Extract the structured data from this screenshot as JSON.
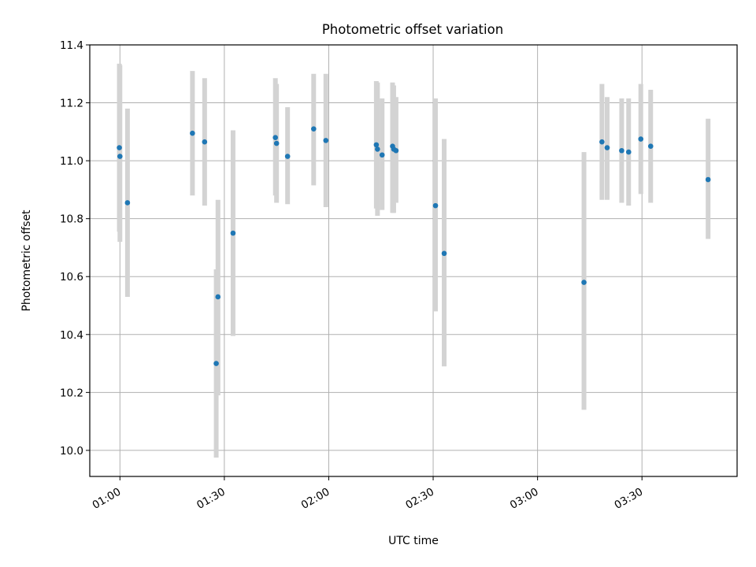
{
  "chart_data": {
    "type": "scatter",
    "title": "Photometric offset variation",
    "xlabel": "UTC time",
    "ylabel": "Photometric offset",
    "xlim": [
      "00:51:20",
      "03:57:20"
    ],
    "ylim": [
      9.91,
      11.4
    ],
    "x_ticks": [
      "01:00",
      "01:30",
      "02:00",
      "02:30",
      "03:00",
      "03:30"
    ],
    "y_ticks": [
      "10.0",
      "10.2",
      "10.4",
      "10.6",
      "10.8",
      "11.0",
      "11.2",
      "11.4"
    ],
    "grid": true,
    "colors": {
      "point": "#1f77b4",
      "error_bar": "#d3d3d3",
      "grid": "#b0b0b0"
    },
    "points": [
      {
        "x": "00:59:50",
        "y": 11.045,
        "ylow": 10.755,
        "yhigh": 11.335
      },
      {
        "x": "01:00:00",
        "y": 11.015,
        "ylow": 10.72,
        "yhigh": 11.33
      },
      {
        "x": "01:02:10",
        "y": 10.855,
        "ylow": 10.53,
        "yhigh": 11.18
      },
      {
        "x": "01:20:50",
        "y": 11.095,
        "ylow": 10.88,
        "yhigh": 11.31
      },
      {
        "x": "01:24:20",
        "y": 11.065,
        "ylow": 10.845,
        "yhigh": 11.285
      },
      {
        "x": "01:27:40",
        "y": 10.3,
        "ylow": 9.975,
        "yhigh": 10.625
      },
      {
        "x": "01:28:10",
        "y": 10.53,
        "ylow": 10.19,
        "yhigh": 10.865
      },
      {
        "x": "01:32:30",
        "y": 10.75,
        "ylow": 10.395,
        "yhigh": 11.105
      },
      {
        "x": "01:44:40",
        "y": 11.08,
        "ylow": 10.88,
        "yhigh": 11.285
      },
      {
        "x": "01:45:00",
        "y": 11.06,
        "ylow": 10.855,
        "yhigh": 11.265
      },
      {
        "x": "01:48:10",
        "y": 11.015,
        "ylow": 10.85,
        "yhigh": 11.185
      },
      {
        "x": "01:55:40",
        "y": 11.11,
        "ylow": 10.915,
        "yhigh": 11.3
      },
      {
        "x": "01:59:10",
        "y": 11.07,
        "ylow": 10.84,
        "yhigh": 11.3
      },
      {
        "x": "02:13:40",
        "y": 11.055,
        "ylow": 10.835,
        "yhigh": 11.275
      },
      {
        "x": "02:14:00",
        "y": 11.04,
        "ylow": 10.81,
        "yhigh": 11.27
      },
      {
        "x": "02:15:20",
        "y": 11.02,
        "ylow": 10.83,
        "yhigh": 11.215
      },
      {
        "x": "02:18:20",
        "y": 11.05,
        "ylow": 10.82,
        "yhigh": 11.27
      },
      {
        "x": "02:18:40",
        "y": 11.04,
        "ylow": 10.82,
        "yhigh": 11.26
      },
      {
        "x": "02:19:20",
        "y": 11.035,
        "ylow": 10.855,
        "yhigh": 11.22
      },
      {
        "x": "02:30:40",
        "y": 10.845,
        "ylow": 10.48,
        "yhigh": 11.215
      },
      {
        "x": "02:33:10",
        "y": 10.68,
        "ylow": 10.29,
        "yhigh": 11.075
      },
      {
        "x": "03:13:20",
        "y": 10.58,
        "ylow": 10.14,
        "yhigh": 11.03
      },
      {
        "x": "03:18:30",
        "y": 11.065,
        "ylow": 10.865,
        "yhigh": 11.265
      },
      {
        "x": "03:20:00",
        "y": 11.045,
        "ylow": 10.865,
        "yhigh": 11.22
      },
      {
        "x": "03:24:10",
        "y": 11.035,
        "ylow": 10.855,
        "yhigh": 11.215
      },
      {
        "x": "03:26:10",
        "y": 11.03,
        "ylow": 10.845,
        "yhigh": 11.215
      },
      {
        "x": "03:29:40",
        "y": 11.075,
        "ylow": 10.885,
        "yhigh": 11.265
      },
      {
        "x": "03:32:30",
        "y": 11.05,
        "ylow": 10.855,
        "yhigh": 11.245
      },
      {
        "x": "03:49:00",
        "y": 10.935,
        "ylow": 10.73,
        "yhigh": 11.145
      }
    ]
  }
}
